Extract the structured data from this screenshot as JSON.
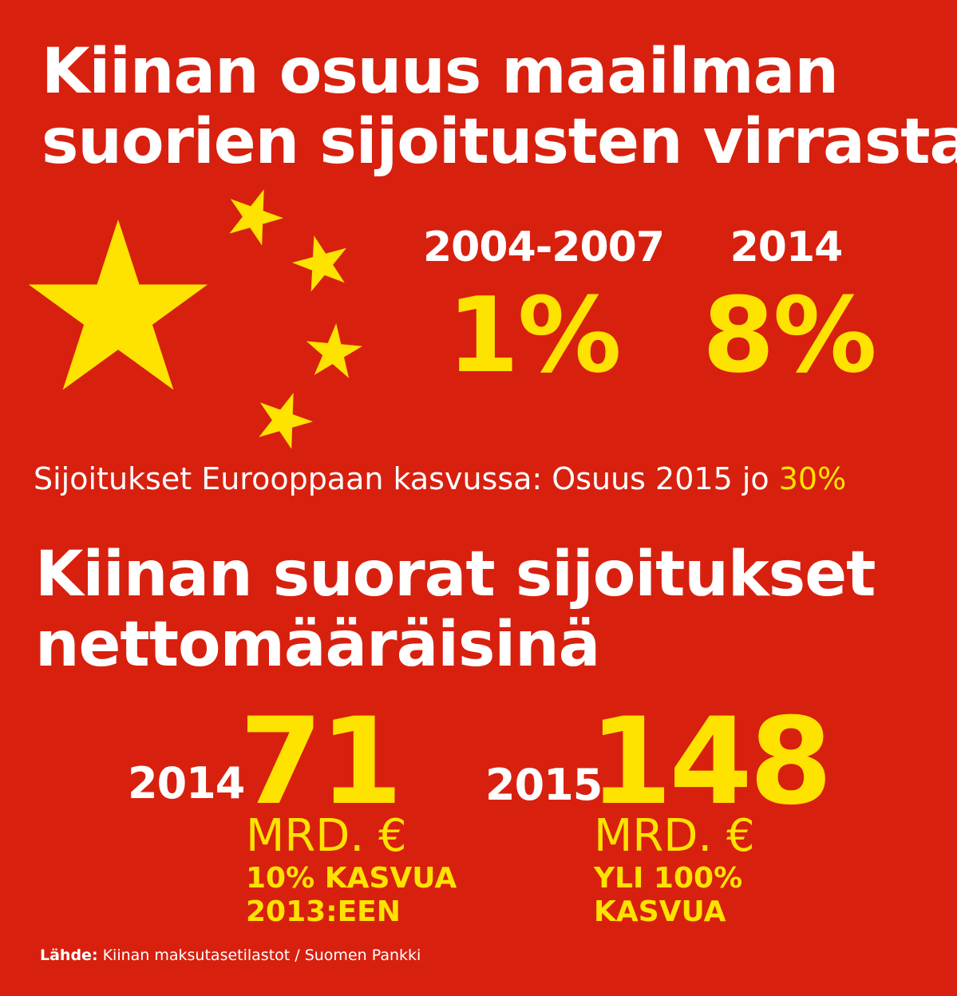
{
  "colors": {
    "background": "#d8200f",
    "star": "#ffe300",
    "text_primary": "#ffffff",
    "text_accent": "#ffe300"
  },
  "header": {
    "title_line1": "Kiinan osuus maailman",
    "title_line2": "suorien sijoitusten virrasta"
  },
  "shares": [
    {
      "period": "2004-2007",
      "value": "1%"
    },
    {
      "period": "2014",
      "value": "8%"
    }
  ],
  "europe_note": {
    "text": "Sijoitukset Eurooppaan kasvussa: Osuus 2015 jo",
    "highlight": "30%"
  },
  "section2": {
    "title_line1": "Kiinan suorat sijoitukset",
    "title_line2": "nettomääräisinä"
  },
  "net_investments": [
    {
      "year": "2014",
      "value": "71",
      "unit": "MRD. €",
      "note_line1": "10% KASVUA",
      "note_line2": "2013:EEN"
    },
    {
      "year": "2015",
      "value": "148",
      "unit": "MRD. €",
      "note_line1": "YLI 100%",
      "note_line2": "KASVUA"
    }
  ],
  "source": {
    "label": "Lähde:",
    "text": "Kiinan maksutasetilastot / Suomen Pankki"
  },
  "decoration": {
    "flag_stars": "star-icon"
  }
}
